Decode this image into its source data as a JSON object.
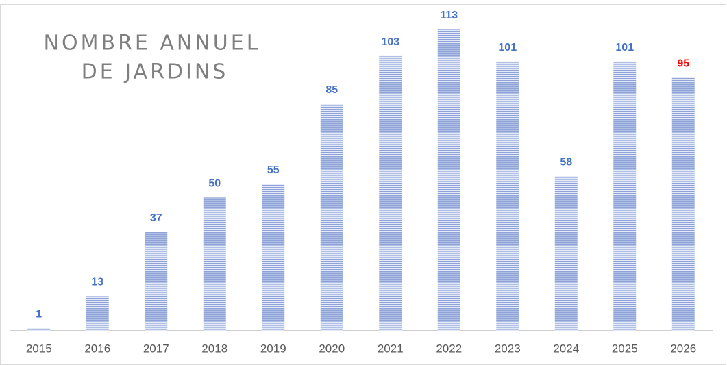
{
  "chart_data": {
    "type": "bar",
    "title": [
      "NOMBRE ANNUEL",
      "DE JARDINS"
    ],
    "categories": [
      "2015",
      "2016",
      "2017",
      "2018",
      "2019",
      "2020",
      "2021",
      "2022",
      "2023",
      "2024",
      "2025",
      "2026"
    ],
    "values": [
      1,
      13,
      37,
      50,
      55,
      85,
      103,
      113,
      101,
      58,
      101,
      95
    ],
    "color": "#8fa3d8",
    "label_colors": [
      "#4472c4",
      "#4472c4",
      "#4472c4",
      "#4472c4",
      "#4472c4",
      "#4472c4",
      "#4472c4",
      "#4472c4",
      "#4472c4",
      "#4472c4",
      "#4472c4",
      "#ff0000"
    ],
    "ylim": [
      0,
      113
    ]
  }
}
